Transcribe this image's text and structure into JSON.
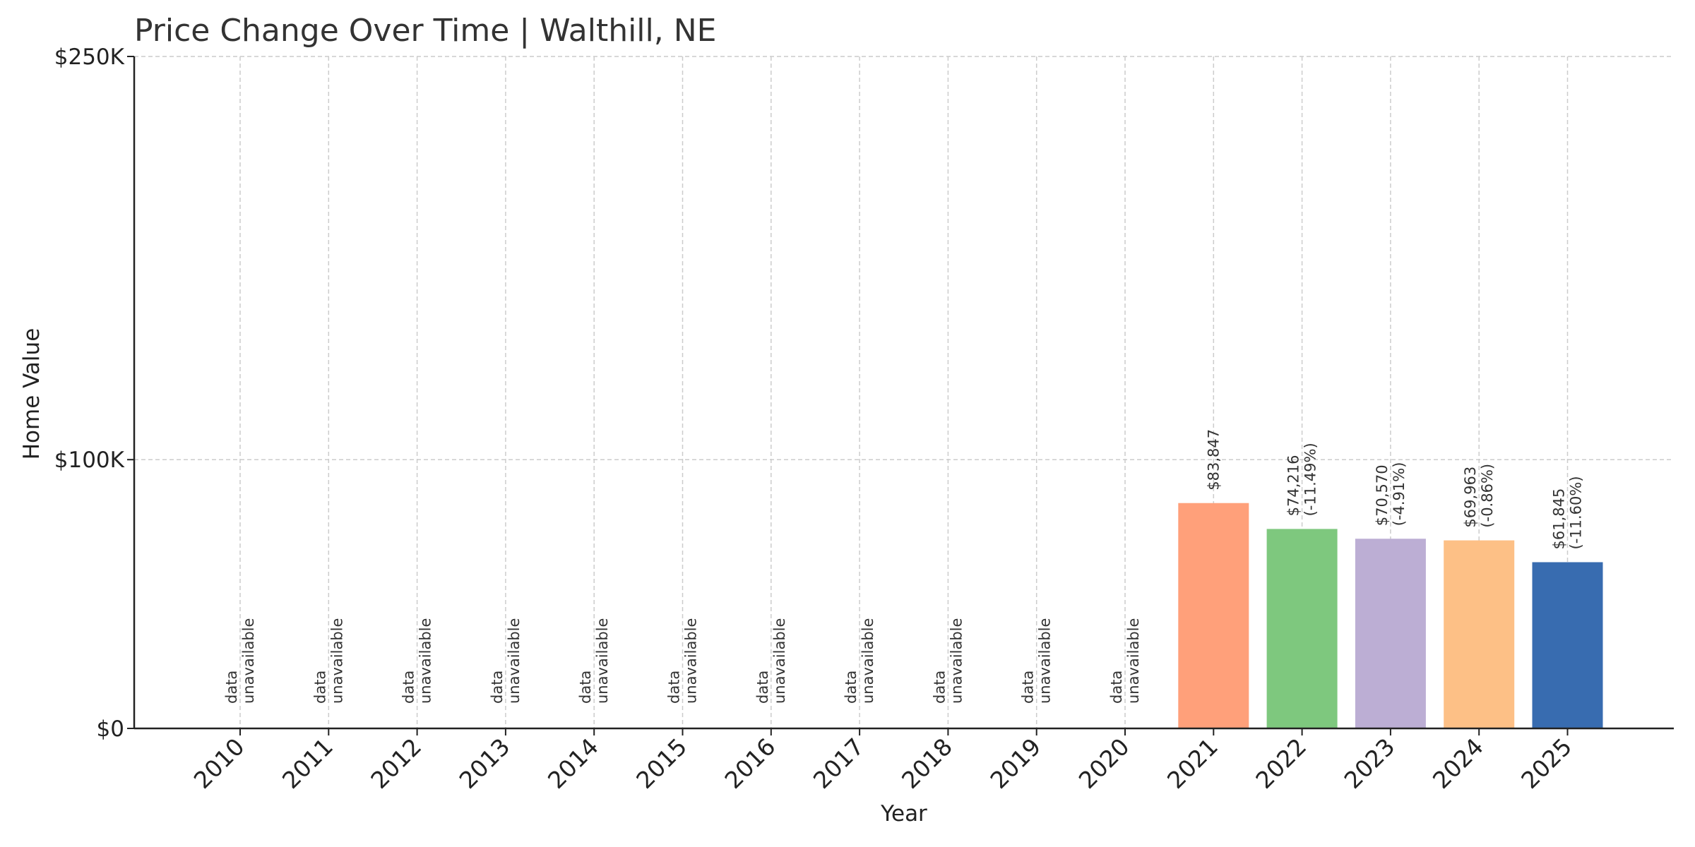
{
  "chart_data": {
    "type": "bar",
    "title": "Price Change Over Time | Walthill, NE",
    "xlabel": "Year",
    "ylabel": "Home Value",
    "categories": [
      "2010",
      "2011",
      "2012",
      "2013",
      "2014",
      "2015",
      "2016",
      "2017",
      "2018",
      "2019",
      "2020",
      "2021",
      "2022",
      "2023",
      "2024",
      "2025"
    ],
    "values": [
      null,
      null,
      null,
      null,
      null,
      null,
      null,
      null,
      null,
      null,
      null,
      83847,
      74216,
      70570,
      69963,
      61845
    ],
    "labels": [
      [
        "data",
        "unavailable"
      ],
      [
        "data",
        "unavailable"
      ],
      [
        "data",
        "unavailable"
      ],
      [
        "data",
        "unavailable"
      ],
      [
        "data",
        "unavailable"
      ],
      [
        "data",
        "unavailable"
      ],
      [
        "data",
        "unavailable"
      ],
      [
        "data",
        "unavailable"
      ],
      [
        "data",
        "unavailable"
      ],
      [
        "data",
        "unavailable"
      ],
      [
        "data",
        "unavailable"
      ],
      [
        "$83,847"
      ],
      [
        "$74,216",
        "(-11.49%)"
      ],
      [
        "$70,570",
        "(-4.91%)"
      ],
      [
        "$69,963",
        "(-0.86%)"
      ],
      [
        "$61,845",
        "(-11.60%)"
      ]
    ],
    "colors": [
      "#FFA07A",
      "#7EC87E",
      "#BCAED4",
      "#FDC086",
      "#386CB0"
    ],
    "ylim": [
      0,
      250000
    ],
    "yticks": [
      {
        "value": 0,
        "label": "$0"
      },
      {
        "value": 100000,
        "label": "$100K"
      },
      {
        "value": 250000,
        "label": "$250K"
      }
    ],
    "grid": true,
    "legend": "none"
  }
}
